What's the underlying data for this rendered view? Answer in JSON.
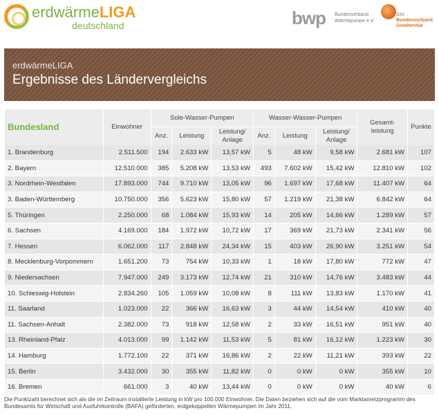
{
  "logos": {
    "liga_part1": "erdwärme",
    "liga_part2": "LIGA",
    "liga_line2": "deutschland",
    "bwp_mark": "bwp",
    "bwp_line1": "Bundesverband",
    "bwp_line2": "Wärmepumpe e.V.",
    "gtv_line1": "GtV",
    "gtv_line2": "Bundesverband",
    "gtv_line3": "Geothermie"
  },
  "banner": {
    "subtitle": "erdwärmeLIGA",
    "title": "Ergebnisse des Ländervergleichs"
  },
  "table": {
    "headers": {
      "bundesland": "Bundesland",
      "einwohner": "Einwohner",
      "sole_group": "Sole-Wasser-Pumpen",
      "wasser_group": "Wasser-Wasser-Pumpen",
      "anz": "Anz.",
      "leistung": "Leistung",
      "leistung_anlage_1": "Leistung/",
      "leistung_anlage_2": "Anlage",
      "gesamt_1": "Gesamt-",
      "gesamt_2": "leistung",
      "punkte": "Punkte"
    },
    "rows": [
      {
        "land": "1. Brandenburg",
        "einwohner": "2.511.500",
        "sw_anz": "194",
        "sw_leistung": "2.633 kW",
        "sw_anlage": "13,57 kW",
        "ww_anz": "5",
        "ww_leistung": "48 kW",
        "ww_anlage": "9,58 kW",
        "gesamt": "2.681 kW",
        "punkte": "107"
      },
      {
        "land": "2. Bayern",
        "einwohner": "12.510.000",
        "sw_anz": "385",
        "sw_leistung": "5.208 kW",
        "sw_anlage": "13,53 kW",
        "ww_anz": "493",
        "ww_leistung": "7.602 kW",
        "ww_anlage": "15,42 kW",
        "gesamt": "12.810 kW",
        "punkte": "102"
      },
      {
        "land": "3. Nordrhein-Westfalen",
        "einwohner": "17.893.000",
        "sw_anz": "744",
        "sw_leistung": "9.710 kW",
        "sw_anlage": "13,05 kW",
        "ww_anz": "96",
        "ww_leistung": "1.697 kW",
        "ww_anlage": "17,68 kW",
        "gesamt": "11.407 kW",
        "punkte": "64"
      },
      {
        "land": "3. Baden-Württemberg",
        "einwohner": "10.750.000",
        "sw_anz": "356",
        "sw_leistung": "5.623 kW",
        "sw_anlage": "15,80 kW",
        "ww_anz": "57",
        "ww_leistung": "1.219 kW",
        "ww_anlage": "21,38 kW",
        "gesamt": "6.842 kW",
        "punkte": "64"
      },
      {
        "land": "5. Thüringen",
        "einwohner": "2.250.000",
        "sw_anz": "68",
        "sw_leistung": "1.084 kW",
        "sw_anlage": "15,93 kW",
        "ww_anz": "14",
        "ww_leistung": "205 kW",
        "ww_anlage": "14,66 kW",
        "gesamt": "1.289 kW",
        "punkte": "57"
      },
      {
        "land": "6. Sachsen",
        "einwohner": "4.169.000",
        "sw_anz": "184",
        "sw_leistung": "1.972 kW",
        "sw_anlage": "10,72 kW",
        "ww_anz": "17",
        "ww_leistung": "369 kW",
        "ww_anlage": "21,73 kW",
        "gesamt": "2.341 kW",
        "punkte": "56"
      },
      {
        "land": "7. Hessen",
        "einwohner": "6.062.000",
        "sw_anz": "117",
        "sw_leistung": "2.848 kW",
        "sw_anlage": "24,34 kW",
        "ww_anz": "15",
        "ww_leistung": "403 kW",
        "ww_anlage": "26,90 kW",
        "gesamt": "3.251 kW",
        "punkte": "54"
      },
      {
        "land": "8. Mecklenburg-Vorpommern",
        "einwohner": "1.651.200",
        "sw_anz": "73",
        "sw_leistung": "754 kW",
        "sw_anlage": "10,33 kW",
        "ww_anz": "1",
        "ww_leistung": "18 kW",
        "ww_anlage": "17,80 kW",
        "gesamt": "772 kW",
        "punkte": "47"
      },
      {
        "land": "9. Niedersachsen",
        "einwohner": "7.947.000",
        "sw_anz": "249",
        "sw_leistung": "3.173 kW",
        "sw_anlage": "12,74 kW",
        "ww_anz": "21",
        "ww_leistung": "310 kW",
        "ww_anlage": "14,76 kW",
        "gesamt": "3.483 kW",
        "punkte": "44"
      },
      {
        "land": "10. Schleswig-Holstein",
        "einwohner": "2.834.260",
        "sw_anz": "105",
        "sw_leistung": "1.059 kW",
        "sw_anlage": "10,08 kW",
        "ww_anz": "8",
        "ww_leistung": "111 kW",
        "ww_anlage": "13,83 kW",
        "gesamt": "1.170 kW",
        "punkte": "41"
      },
      {
        "land": "11. Saarland",
        "einwohner": "1.023.000",
        "sw_anz": "22",
        "sw_leistung": "366 kW",
        "sw_anlage": "16,63 kW",
        "ww_anz": "3",
        "ww_leistung": "44 kW",
        "ww_anlage": "14,54 kW",
        "gesamt": "410 kW",
        "punkte": "40"
      },
      {
        "land": "11. Sachsen-Anhalt",
        "einwohner": "2.382.000",
        "sw_anz": "73",
        "sw_leistung": "918 kW",
        "sw_anlage": "12,58 kW",
        "ww_anz": "2",
        "ww_leistung": "33 kW",
        "ww_anlage": "16,51 kW",
        "gesamt": "951 kW",
        "punkte": "40"
      },
      {
        "land": "13. Rheinland-Pfalz",
        "einwohner": "4.013.000",
        "sw_anz": "99",
        "sw_leistung": "1.142 kW",
        "sw_anlage": "11,53 kW",
        "ww_anz": "5",
        "ww_leistung": "81 kW",
        "ww_anlage": "16,12 kW",
        "gesamt": "1.223 kW",
        "punkte": "30"
      },
      {
        "land": "14. Hamburg",
        "einwohner": "1.772.100",
        "sw_anz": "22",
        "sw_leistung": "371 kW",
        "sw_anlage": "16,86 kW",
        "ww_anz": "2",
        "ww_leistung": "22 kW",
        "ww_anlage": "11,21 kW",
        "gesamt": "393 kW",
        "punkte": "22"
      },
      {
        "land": "15. Berlin",
        "einwohner": "3.432.000",
        "sw_anz": "30",
        "sw_leistung": "355 kW",
        "sw_anlage": "11,82 kW",
        "ww_anz": "0",
        "ww_leistung": "0 kW",
        "ww_anlage": "0 kW",
        "gesamt": "355 kW",
        "punkte": "10"
      },
      {
        "land": "16. Bremen",
        "einwohner": "661.000",
        "sw_anz": "3",
        "sw_leistung": "40 kW",
        "sw_anlage": "13,44 kW",
        "ww_anz": "0",
        "ww_leistung": "0 kW",
        "ww_anlage": "0 kW",
        "gesamt": "40 kW",
        "punkte": "6"
      }
    ]
  },
  "footnote": "Die Punktzahl berechnet sich als die im Zeitraum installierte Leistung in kW pro 100.000 Einwohner. Die Daten beziehen sich auf die vom Marktanreizprogramm des Bundesamts für Wirtschaft und Ausfuhrkontrolle (BAFA) geförderten, erdgekoppelten Wärmepumpen im Jahr 2011.",
  "colors": {
    "brand_green": "#7ab342",
    "brand_orange": "#f29a1f",
    "banner_brown": "#7d5640",
    "gtv_orange": "#e3702a"
  }
}
